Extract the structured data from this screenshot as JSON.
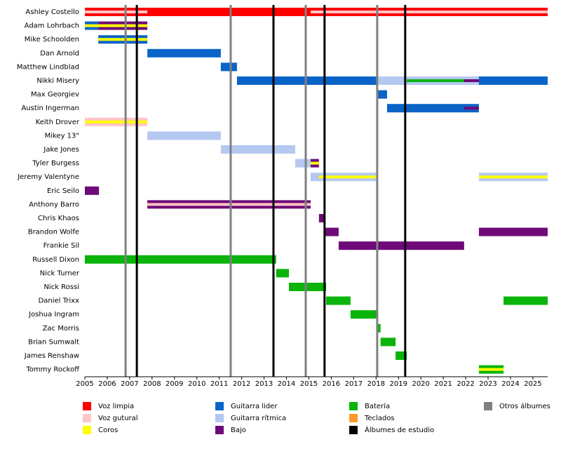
{
  "chart_data": {
    "type": "timeline",
    "roles": [
      {
        "name": "Voz limpia",
        "color": "#ff0000"
      },
      {
        "name": "Voz gutural",
        "color": "#ffc4c4"
      },
      {
        "name": "Coros",
        "color": "#ffff00"
      },
      {
        "name": "Guitarra lider",
        "color": "#0a64c8"
      },
      {
        "name": "Guitarra rítmica",
        "color": "#b4c8f0"
      },
      {
        "name": "Bajo",
        "color": "#6e0a78"
      },
      {
        "name": "Batería",
        "color": "#0ab40a"
      },
      {
        "name": "Teclados",
        "color": "#ff9a28"
      }
    ],
    "albums": [
      {
        "name": "Álbumes de estudio",
        "color": "#000000",
        "years": [
          2007.32,
          2013.42,
          2015.7,
          2019.3
        ]
      },
      {
        "name": "Otros álbumes",
        "color": "#808080",
        "years": [
          2006.82,
          2011.51,
          2014.86,
          2018.05
        ]
      }
    ],
    "members": [
      {
        "name": "Ashley Costello",
        "bars": [
          {
            "role": "Voz limpia",
            "start": 2005,
            "end": 2025.66
          },
          {
            "role": "Voz gutural",
            "start": 2005,
            "end": 2007.79,
            "style": "stripe"
          },
          {
            "role": "Voz gutural",
            "start": 2015.08,
            "end": 2025.66,
            "style": "stripe"
          }
        ]
      },
      {
        "name": "Adam Lohrbach",
        "bars": [
          {
            "role": "Guitarra lider",
            "start": 2005,
            "end": 2005.6
          },
          {
            "role": "Bajo",
            "start": 2005.6,
            "end": 2007.79
          },
          {
            "role": "Coros",
            "start": 2005,
            "end": 2007.79,
            "style": "stripe"
          }
        ]
      },
      {
        "name": "Mike Schoolden",
        "bars": [
          {
            "role": "Guitarra lider",
            "start": 2005.6,
            "end": 2007.79
          },
          {
            "role": "Coros",
            "start": 2005.6,
            "end": 2007.79,
            "style": "stripe"
          }
        ]
      },
      {
        "name": "Dan Arnold",
        "bars": [
          {
            "role": "Guitarra lider",
            "start": 2007.79,
            "end": 2011.07
          }
        ]
      },
      {
        "name": "Matthew Lindblad",
        "bars": [
          {
            "role": "Guitarra lider",
            "start": 2011.07,
            "end": 2011.79
          }
        ]
      },
      {
        "name": "Nikki Misery",
        "bars": [
          {
            "role": "Guitarra lider",
            "start": 2011.79,
            "end": 2025.66
          },
          {
            "role": "Guitarra rítmica",
            "start": 2018.02,
            "end": 2022.59
          },
          {
            "role": "Batería",
            "start": 2019.37,
            "end": 2021.93,
            "style": "stripe"
          },
          {
            "role": "Bajo",
            "start": 2021.93,
            "end": 2022.59,
            "style": "stripe"
          }
        ]
      },
      {
        "name": "Max Georgiev",
        "bars": [
          {
            "role": "Guitarra lider",
            "start": 2018.02,
            "end": 2018.49
          }
        ]
      },
      {
        "name": "Austin Ingerman",
        "bars": [
          {
            "role": "Guitarra lider",
            "start": 2018.49,
            "end": 2022.59
          },
          {
            "role": "Bajo",
            "start": 2021.93,
            "end": 2022.59,
            "style": "stripe"
          }
        ]
      },
      {
        "name": "Keith Drover",
        "bars": [
          {
            "role": "Voz gutural",
            "start": 2005,
            "end": 2007.79
          },
          {
            "role": "Coros",
            "start": 2005,
            "end": 2007.79,
            "style": "stripe"
          }
        ]
      },
      {
        "name": "Mikey 13\"",
        "bars": [
          {
            "role": "Guitarra rítmica",
            "start": 2007.79,
            "end": 2011.07
          }
        ]
      },
      {
        "name": "Jake Jones",
        "bars": [
          {
            "role": "Guitarra rítmica",
            "start": 2011.07,
            "end": 2014.39
          }
        ]
      },
      {
        "name": "Tyler Burgess",
        "bars": [
          {
            "role": "Guitarra rítmica",
            "start": 2014.39,
            "end": 2015.08
          },
          {
            "role": "Bajo",
            "start": 2015.08,
            "end": 2015.45
          },
          {
            "role": "Coros",
            "start": 2015.08,
            "end": 2015.45,
            "style": "stripe"
          }
        ]
      },
      {
        "name": "Jeremy Valentyne",
        "bars": [
          {
            "role": "Guitarra rítmica",
            "start": 2015.08,
            "end": 2018.02
          },
          {
            "role": "Coros",
            "start": 2015.45,
            "end": 2018.02,
            "style": "stripe"
          },
          {
            "role": "Guitarra rítmica",
            "start": 2022.59,
            "end": 2025.66
          },
          {
            "role": "Coros",
            "start": 2022.59,
            "end": 2025.66,
            "style": "stripe"
          }
        ]
      },
      {
        "name": "Eric Seilo",
        "bars": [
          {
            "role": "Bajo",
            "start": 2005,
            "end": 2005.63
          }
        ]
      },
      {
        "name": "Anthony Barro",
        "bars": [
          {
            "role": "Bajo",
            "start": 2007.79,
            "end": 2015.08
          },
          {
            "role": "Voz gutural",
            "start": 2007.79,
            "end": 2015.08,
            "style": "stripe"
          }
        ]
      },
      {
        "name": "Chris Khaos",
        "bars": [
          {
            "role": "Bajo",
            "start": 2015.45,
            "end": 2015.74
          }
        ]
      },
      {
        "name": "Brandon Wolfe",
        "bars": [
          {
            "role": "Bajo",
            "start": 2015.74,
            "end": 2016.33
          },
          {
            "role": "Bajo",
            "start": 2022.59,
            "end": 2025.66
          }
        ]
      },
      {
        "name": "Frankie Sil",
        "bars": [
          {
            "role": "Bajo",
            "start": 2016.33,
            "end": 2021.93
          }
        ]
      },
      {
        "name": "Russell Dixon",
        "bars": [
          {
            "role": "Batería",
            "start": 2005,
            "end": 2013.54
          }
        ]
      },
      {
        "name": "Nick Turner",
        "bars": [
          {
            "role": "Batería",
            "start": 2013.54,
            "end": 2014.11
          }
        ]
      },
      {
        "name": "Nick Rossi",
        "bars": [
          {
            "role": "Batería",
            "start": 2014.11,
            "end": 2015.77
          }
        ]
      },
      {
        "name": "Daniel Trixx",
        "bars": [
          {
            "role": "Batería",
            "start": 2015.77,
            "end": 2016.86
          },
          {
            "role": "Batería",
            "start": 2023.69,
            "end": 2025.66
          }
        ]
      },
      {
        "name": "Joshua Ingram",
        "bars": [
          {
            "role": "Batería",
            "start": 2016.86,
            "end": 2018.05
          }
        ]
      },
      {
        "name": "Zac Morris",
        "bars": [
          {
            "role": "Batería",
            "start": 2018.05,
            "end": 2018.2
          }
        ]
      },
      {
        "name": "Brian Sumwalt",
        "bars": [
          {
            "role": "Batería",
            "start": 2018.2,
            "end": 2018.87
          }
        ]
      },
      {
        "name": "James Renshaw",
        "bars": [
          {
            "role": "Batería",
            "start": 2018.87,
            "end": 2019.37
          }
        ]
      },
      {
        "name": "Tommy Rockoff",
        "bars": [
          {
            "role": "Batería",
            "start": 2022.59,
            "end": 2023.69
          },
          {
            "role": "Coros",
            "start": 2022.59,
            "end": 2023.69,
            "style": "stripe"
          }
        ]
      }
    ],
    "xlim": [
      2005,
      2025.66
    ],
    "xticks": [
      2005,
      2006,
      2007,
      2008,
      2009,
      2010,
      2011,
      2012,
      2013,
      2014,
      2015,
      2016,
      2017,
      2018,
      2019,
      2020,
      2021,
      2022,
      2023,
      2024,
      2025
    ]
  }
}
